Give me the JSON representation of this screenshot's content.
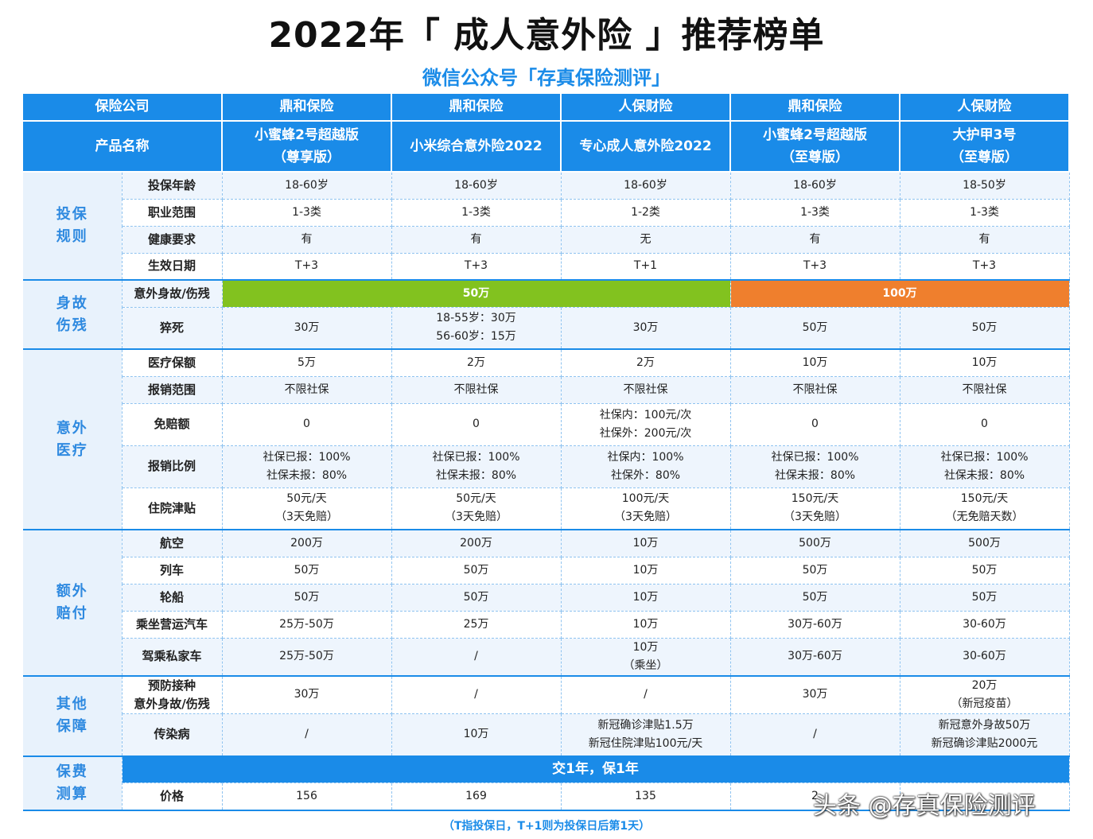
{
  "title": "2022年「 成人意外险 」推荐榜单",
  "subtitle": "微信公众号「存真保险测评」",
  "header": {
    "company_label": "保险公司",
    "companies": [
      "鼎和保险",
      "鼎和保险",
      "人保财险",
      "鼎和保险",
      "人保财险"
    ],
    "product_label": "产品名称",
    "products": [
      [
        "小蜜蜂2号超越版",
        "（尊享版）"
      ],
      [
        "小米综合意外险2022"
      ],
      [
        "专心成人意外险2022"
      ],
      [
        "小蜜蜂2号超越版",
        "（至尊版）"
      ],
      [
        "大护甲3号",
        "（至尊版）"
      ]
    ]
  },
  "sections": [
    {
      "name": [
        "投保",
        "规则"
      ],
      "rows": [
        {
          "label": [
            "投保年龄"
          ],
          "values": [
            [
              "18-60岁"
            ],
            [
              "18-60岁"
            ],
            [
              "18-60岁"
            ],
            [
              "18-60岁"
            ],
            [
              "18-50岁"
            ]
          ]
        },
        {
          "label": [
            "职业范围"
          ],
          "values": [
            [
              "1-3类"
            ],
            [
              "1-3类"
            ],
            [
              "1-2类"
            ],
            [
              "1-3类"
            ],
            [
              "1-3类"
            ]
          ]
        },
        {
          "label": [
            "健康要求"
          ],
          "values": [
            [
              "有"
            ],
            [
              "有"
            ],
            [
              "无"
            ],
            [
              "有"
            ],
            [
              "有"
            ]
          ]
        },
        {
          "label": [
            "生效日期"
          ],
          "values": [
            [
              "T+3"
            ],
            [
              "T+3"
            ],
            [
              "T+1"
            ],
            [
              "T+3"
            ],
            [
              "T+3"
            ]
          ]
        }
      ]
    },
    {
      "name": [
        "身故",
        "伤残"
      ],
      "band_row": {
        "label": "意外身故/伤残",
        "green": "50万",
        "orange": "100万"
      },
      "rows": [
        {
          "label": [
            "猝死"
          ],
          "values": [
            [
              "30万"
            ],
            [
              "18-55岁：30万",
              "56-60岁：15万"
            ],
            [
              "30万"
            ],
            [
              "50万"
            ],
            [
              "50万"
            ]
          ]
        }
      ]
    },
    {
      "name": [
        "意外",
        "医疗"
      ],
      "rows": [
        {
          "label": [
            "医疗保额"
          ],
          "values": [
            [
              "5万"
            ],
            [
              "2万"
            ],
            [
              "2万"
            ],
            [
              "10万"
            ],
            [
              "10万"
            ]
          ]
        },
        {
          "label": [
            "报销范围"
          ],
          "values": [
            [
              "不限社保"
            ],
            [
              "不限社保"
            ],
            [
              "不限社保"
            ],
            [
              "不限社保"
            ],
            [
              "不限社保"
            ]
          ]
        },
        {
          "label": [
            "免赔额"
          ],
          "values": [
            [
              "0"
            ],
            [
              "0"
            ],
            [
              "社保内：100元/次",
              "社保外：200元/次"
            ],
            [
              "0"
            ],
            [
              "0"
            ]
          ]
        },
        {
          "label": [
            "报销比例"
          ],
          "values": [
            [
              "社保已报：100%",
              "社保未报：80%"
            ],
            [
              "社保已报：100%",
              "社保未报：80%"
            ],
            [
              "社保内：100%",
              "社保外：80%"
            ],
            [
              "社保已报：100%",
              "社保未报：80%"
            ],
            [
              "社保已报：100%",
              "社保未报：80%"
            ]
          ]
        },
        {
          "label": [
            "住院津贴"
          ],
          "values": [
            [
              "50元/天",
              "（3天免赔）"
            ],
            [
              "50元/天",
              "（3天免赔）"
            ],
            [
              "100元/天",
              "（3天免赔）"
            ],
            [
              "150元/天",
              "（3天免赔）"
            ],
            [
              "150元/天",
              "（无免赔天数）"
            ]
          ]
        }
      ]
    },
    {
      "name": [
        "额外",
        "赔付"
      ],
      "rows": [
        {
          "label": [
            "航空"
          ],
          "values": [
            [
              "200万"
            ],
            [
              "200万"
            ],
            [
              "10万"
            ],
            [
              "500万"
            ],
            [
              "500万"
            ]
          ]
        },
        {
          "label": [
            "列车"
          ],
          "values": [
            [
              "50万"
            ],
            [
              "50万"
            ],
            [
              "10万"
            ],
            [
              "50万"
            ],
            [
              "50万"
            ]
          ]
        },
        {
          "label": [
            "轮船"
          ],
          "values": [
            [
              "50万"
            ],
            [
              "50万"
            ],
            [
              "10万"
            ],
            [
              "50万"
            ],
            [
              "50万"
            ]
          ]
        },
        {
          "label": [
            "乘坐营运汽车"
          ],
          "values": [
            [
              "25万-50万"
            ],
            [
              "25万"
            ],
            [
              "10万"
            ],
            [
              "30万-60万"
            ],
            [
              "30-60万"
            ]
          ]
        },
        {
          "label": [
            "驾乘私家车"
          ],
          "values": [
            [
              "25万-50万"
            ],
            [
              "/"
            ],
            [
              "10万",
              "（乘坐）"
            ],
            [
              "30万-60万"
            ],
            [
              "30-60万"
            ]
          ]
        }
      ]
    },
    {
      "name": [
        "其他",
        "保障"
      ],
      "rows": [
        {
          "label": [
            "预防接种",
            "意外身故/伤残"
          ],
          "values": [
            [
              "30万"
            ],
            [
              "/"
            ],
            [
              "/"
            ],
            [
              "30万"
            ],
            [
              "20万",
              "（新冠疫苗）"
            ]
          ]
        },
        {
          "label": [
            "传染病"
          ],
          "values": [
            [
              "/"
            ],
            [
              "10万"
            ],
            [
              "新冠确诊津贴1.5万",
              "新冠住院津贴100元/天"
            ],
            [
              "/"
            ],
            [
              "新冠意外身故50万",
              "新冠确诊津贴2000元"
            ]
          ]
        }
      ]
    },
    {
      "name": [
        "保费",
        "测算"
      ],
      "band_full": "交1年，保1年",
      "rows": [
        {
          "label": [
            "价格"
          ],
          "values": [
            [
              "156"
            ],
            [
              "169"
            ],
            [
              "135"
            ],
            [
              "2"
            ],
            [
              ""
            ]
          ]
        }
      ]
    }
  ],
  "footnote": "（T指投保日，T+1则为投保日后第1天）",
  "watermark": "头条 @存真保险测评"
}
